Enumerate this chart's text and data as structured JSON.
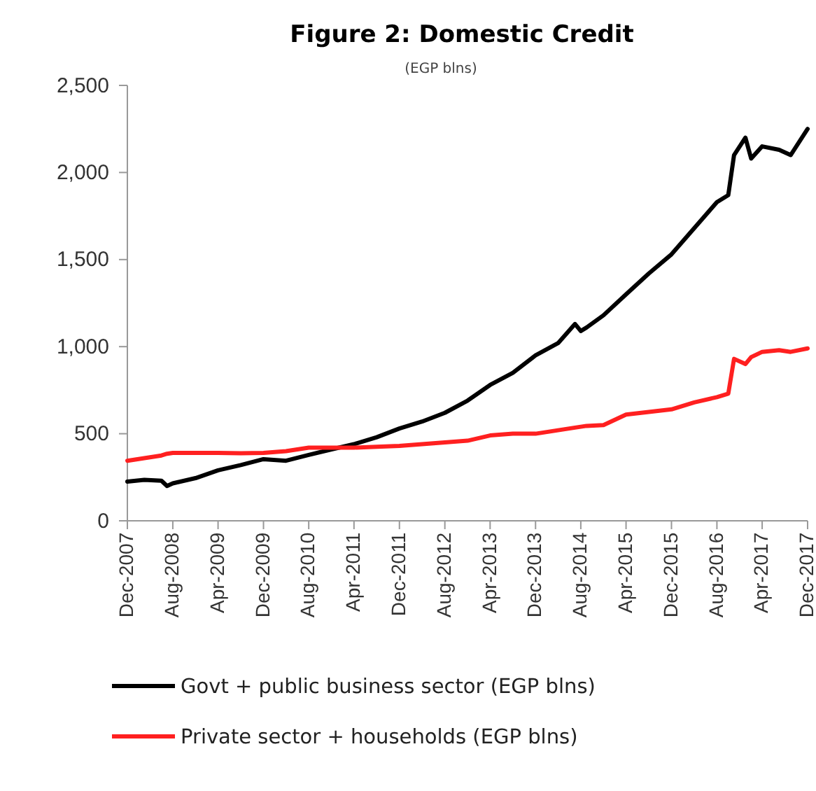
{
  "chart_data": {
    "type": "line",
    "title": "Figure 2: Domestic Credit",
    "subtitle": "(EGP blns)",
    "x": [
      "2007-12",
      "2008-03",
      "2008-06",
      "2008-07",
      "2008-08",
      "2008-12",
      "2009-04",
      "2009-08",
      "2009-12",
      "2010-04",
      "2010-08",
      "2010-12",
      "2011-04",
      "2011-08",
      "2011-12",
      "2012-04",
      "2012-08",
      "2012-12",
      "2013-04",
      "2013-08",
      "2013-12",
      "2014-04",
      "2014-07",
      "2014-08",
      "2014-09",
      "2014-12",
      "2015-04",
      "2015-08",
      "2015-12",
      "2016-04",
      "2016-08",
      "2016-10",
      "2016-11",
      "2017-01",
      "2017-02",
      "2017-04",
      "2017-07",
      "2017-09",
      "2017-12"
    ],
    "series": [
      {
        "name": "Govt + public business sector (EGP blns)",
        "color": "#000000",
        "values": [
          225,
          235,
          230,
          200,
          215,
          245,
          290,
          320,
          354,
          345,
          378,
          410,
          440,
          480,
          530,
          570,
          620,
          690,
          780,
          850,
          950,
          1020,
          1130,
          1090,
          1110,
          1180,
          1300,
          1420,
          1530,
          1680,
          1830,
          1870,
          2100,
          2200,
          2080,
          2150,
          2130,
          2100,
          2250
        ]
      },
      {
        "name": "Private sector + households (EGP blns)",
        "color": "#ff2020",
        "values": [
          345,
          360,
          375,
          385,
          390,
          390,
          390,
          388,
          390,
          400,
          420,
          420,
          420,
          425,
          430,
          440,
          450,
          460,
          490,
          500,
          500,
          520,
          535,
          540,
          545,
          550,
          610,
          625,
          640,
          680,
          710,
          730,
          930,
          900,
          940,
          970,
          980,
          970,
          990
        ]
      }
    ],
    "xlim": [
      "2007-12",
      "2017-12"
    ],
    "xticks": [
      {
        "value": "2007-12",
        "label": "Dec-2007"
      },
      {
        "value": "2008-08",
        "label": "Aug-2008"
      },
      {
        "value": "2009-04",
        "label": "Apr-2009"
      },
      {
        "value": "2009-12",
        "label": "Dec-2009"
      },
      {
        "value": "2010-08",
        "label": "Aug-2010"
      },
      {
        "value": "2011-04",
        "label": "Apr-2011"
      },
      {
        "value": "2011-12",
        "label": "Dec-2011"
      },
      {
        "value": "2012-08",
        "label": "Aug-2012"
      },
      {
        "value": "2013-04",
        "label": "Apr-2013"
      },
      {
        "value": "2013-12",
        "label": "Dec-2013"
      },
      {
        "value": "2014-08",
        "label": "Aug-2014"
      },
      {
        "value": "2015-04",
        "label": "Apr-2015"
      },
      {
        "value": "2015-12",
        "label": "Dec-2015"
      },
      {
        "value": "2016-08",
        "label": "Aug-2016"
      },
      {
        "value": "2017-04",
        "label": "Apr-2017"
      },
      {
        "value": "2017-12",
        "label": "Dec-2017"
      }
    ],
    "ylim": [
      0,
      2500
    ],
    "yticks": [
      {
        "value": 0,
        "label": "0"
      },
      {
        "value": 500,
        "label": "500"
      },
      {
        "value": 1000,
        "label": "1,000"
      },
      {
        "value": 1500,
        "label": "1,500"
      },
      {
        "value": 2000,
        "label": "2,000"
      },
      {
        "value": 2500,
        "label": "2,500"
      }
    ],
    "grid": false,
    "legend": "bottom",
    "marker": "none",
    "line_style": "solid"
  }
}
